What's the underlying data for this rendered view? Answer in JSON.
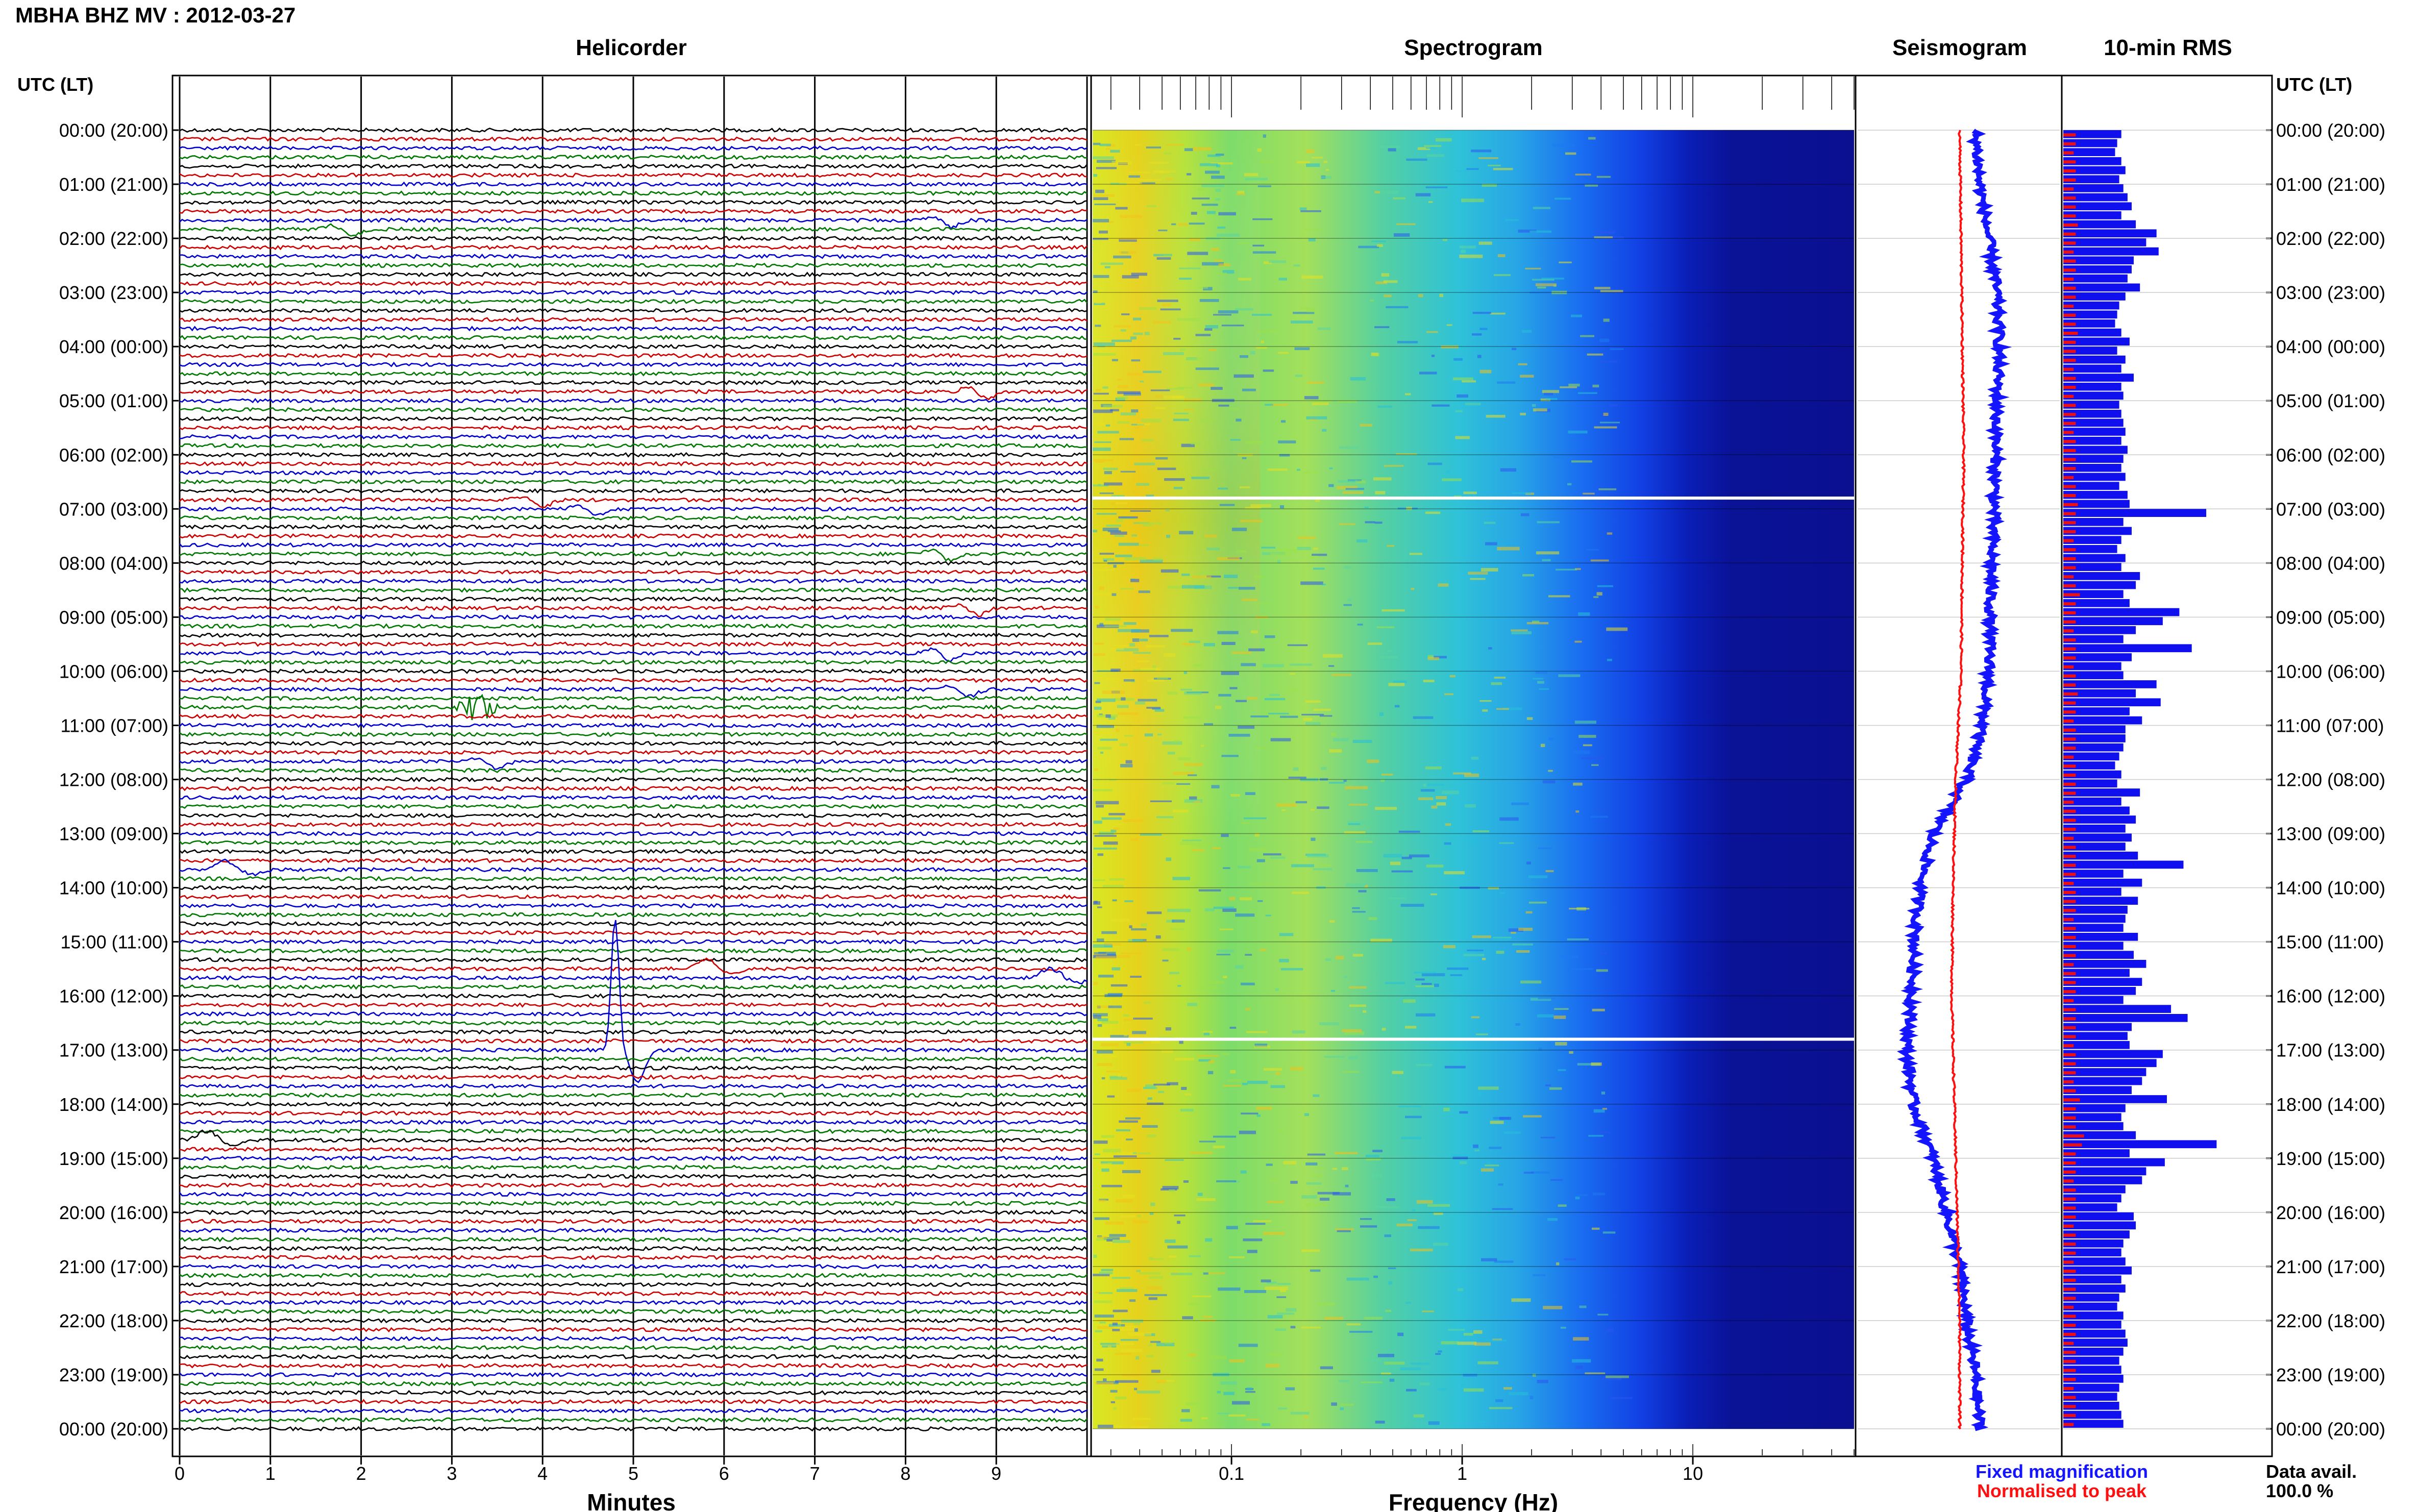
{
  "header": {
    "title": "MBHA BHZ MV : 2012-03-27"
  },
  "panels": {
    "helicorder": "Helicorder",
    "spectrogram": "Spectrogram",
    "seismogram": "Seismogram",
    "rms": "10-min RMS"
  },
  "axes": {
    "utc_label_left": "UTC (LT)",
    "utc_label_right": "UTC (LT)",
    "minutes_label": "Minutes",
    "frequency_label": "Frequency (Hz)",
    "minute_ticks": [
      "0",
      "1",
      "2",
      "3",
      "4",
      "5",
      "6",
      "7",
      "8",
      "9"
    ],
    "freq_ticks": [
      "0.1",
      "1",
      "10"
    ],
    "hour_labels": [
      "00:00 (20:00)",
      "01:00 (21:00)",
      "02:00 (22:00)",
      "03:00 (23:00)",
      "04:00 (00:00)",
      "05:00 (01:00)",
      "06:00 (02:00)",
      "07:00 (03:00)",
      "08:00 (04:00)",
      "09:00 (05:00)",
      "10:00 (06:00)",
      "11:00 (07:00)",
      "12:00 (08:00)",
      "13:00 (09:00)",
      "14:00 (10:00)",
      "15:00 (11:00)",
      "16:00 (12:00)",
      "17:00 (13:00)",
      "18:00 (14:00)",
      "19:00 (15:00)",
      "20:00 (16:00)",
      "21:00 (17:00)",
      "22:00 (18:00)",
      "23:00 (19:00)",
      "00:00 (20:00)"
    ]
  },
  "legend": {
    "fixed": "Fixed magnification",
    "normalised": "Normalised to peak",
    "data_avail_label": "Data avail.",
    "data_avail_value": "100.0 %"
  },
  "colors": {
    "fixed": "#1414ff",
    "normalised": "#ff1010",
    "trace_cycle": [
      "#000000",
      "#cc0000",
      "#0000cc",
      "#007700"
    ],
    "rms_bar": "#1010ee",
    "rms_norm": "#ee1010"
  },
  "chart_data": [
    {
      "type": "line",
      "title": "Helicorder",
      "xlabel": "Minutes",
      "xlim": [
        0,
        10
      ],
      "rows_per_hour": 6,
      "row_minutes": 10,
      "events": [
        {
          "row": 11,
          "minute": 1.8,
          "kind": "dip"
        },
        {
          "row": 10,
          "minute": 8.4,
          "kind": "dip"
        },
        {
          "row": 29,
          "minute": 8.8,
          "kind": "dip"
        },
        {
          "row": 41,
          "minute": 3.9,
          "kind": "dip"
        },
        {
          "row": 42,
          "minute": 4.5,
          "kind": "dip"
        },
        {
          "row": 47,
          "minute": 8.4,
          "kind": "dip"
        },
        {
          "row": 53,
          "minute": 8.7,
          "kind": "dip"
        },
        {
          "row": 58,
          "minute": 8.4,
          "kind": "dip"
        },
        {
          "row": 62,
          "minute": 8.6,
          "kind": "dip"
        },
        {
          "row": 64,
          "minute": 3.3,
          "kind": "burst"
        },
        {
          "row": 70,
          "minute": 3.4,
          "kind": "dip"
        },
        {
          "row": 82,
          "minute": 0.5,
          "kind": "bump"
        },
        {
          "row": 93,
          "minute": 5.8,
          "kind": "bump"
        },
        {
          "row": 94,
          "minute": 9.6,
          "kind": "bump"
        },
        {
          "row": 102,
          "minute": 4.8,
          "kind": "spike"
        },
        {
          "row": 112,
          "minute": 0.3,
          "kind": "bump"
        }
      ]
    },
    {
      "type": "heatmap",
      "title": "Spectrogram",
      "xlabel": "Frequency (Hz)",
      "x_scale": "log",
      "xlim": [
        0.025,
        50
      ],
      "ylim_hours": [
        0,
        24
      ],
      "gaps_hours": [
        6.8,
        16.8
      ]
    },
    {
      "type": "line",
      "title": "Seismogram",
      "series": [
        {
          "name": "Fixed magnification",
          "hours": [
            0,
            1,
            2,
            3,
            4,
            5,
            6,
            7,
            8,
            9,
            10,
            11,
            12,
            13,
            14,
            15,
            16,
            17,
            18,
            19,
            20,
            21,
            22,
            23,
            24
          ],
          "values": [
            0.12,
            0.15,
            0.22,
            0.28,
            0.3,
            0.28,
            0.27,
            0.26,
            0.24,
            0.23,
            0.22,
            0.17,
            0.05,
            -0.2,
            -0.3,
            -0.34,
            -0.36,
            -0.4,
            -0.35,
            -0.2,
            -0.1,
            0.0,
            0.05,
            0.12,
            0.15
          ]
        },
        {
          "name": "Normalised to peak",
          "hours": [
            0,
            2,
            4,
            6,
            8,
            10,
            12,
            14,
            16,
            18,
            20,
            22,
            24
          ],
          "values": [
            0.0,
            0.01,
            0.02,
            0.03,
            0.02,
            0.01,
            -0.03,
            -0.05,
            -0.06,
            -0.04,
            -0.02,
            0.0,
            0.0
          ]
        }
      ]
    },
    {
      "type": "bar",
      "title": "10-min RMS",
      "series": [
        {
          "name": "Fixed magnification",
          "values": [
            0.28,
            0.26,
            0.25,
            0.28,
            0.3,
            0.27,
            0.29,
            0.31,
            0.33,
            0.28,
            0.35,
            0.45,
            0.4,
            0.46,
            0.34,
            0.33,
            0.31,
            0.37,
            0.3,
            0.27,
            0.26,
            0.25,
            0.28,
            0.32,
            0.26,
            0.3,
            0.28,
            0.34,
            0.28,
            0.29,
            0.27,
            0.28,
            0.29,
            0.3,
            0.28,
            0.31,
            0.29,
            0.28,
            0.3,
            0.27,
            0.31,
            0.32,
            0.69,
            0.29,
            0.33,
            0.28,
            0.26,
            0.3,
            0.28,
            0.37,
            0.35,
            0.29,
            0.32,
            0.56,
            0.48,
            0.35,
            0.29,
            0.62,
            0.33,
            0.28,
            0.29,
            0.45,
            0.35,
            0.47,
            0.32,
            0.38,
            0.3,
            0.3,
            0.29,
            0.27,
            0.25,
            0.28,
            0.26,
            0.37,
            0.28,
            0.32,
            0.35,
            0.3,
            0.33,
            0.3,
            0.36,
            0.58,
            0.29,
            0.38,
            0.28,
            0.36,
            0.31,
            0.3,
            0.29,
            0.36,
            0.29,
            0.34,
            0.4,
            0.32,
            0.38,
            0.35,
            0.29,
            0.52,
            0.6,
            0.33,
            0.31,
            0.32,
            0.48,
            0.45,
            0.4,
            0.38,
            0.33,
            0.5,
            0.3,
            0.28,
            0.29,
            0.35,
            0.74,
            0.32,
            0.49,
            0.4,
            0.38,
            0.3,
            0.28,
            0.26,
            0.34,
            0.35,
            0.32,
            0.29,
            0.28,
            0.3,
            0.33,
            0.28,
            0.3,
            0.27,
            0.26,
            0.29,
            0.28,
            0.3,
            0.31,
            0.29,
            0.27,
            0.28,
            0.29,
            0.27,
            0.26,
            0.27,
            0.28,
            0.29
          ]
        },
        {
          "name": "Normalised to peak",
          "values": [
            0.06,
            0.06,
            0.05,
            0.06,
            0.06,
            0.06,
            0.05,
            0.06,
            0.06,
            0.06,
            0.07,
            0.06,
            0.06,
            0.05,
            0.06,
            0.06,
            0.05,
            0.06,
            0.06,
            0.05,
            0.06,
            0.06,
            0.07,
            0.06,
            0.06,
            0.06,
            0.05,
            0.06,
            0.06,
            0.05,
            0.06,
            0.06,
            0.06,
            0.05,
            0.06,
            0.06,
            0.06,
            0.06,
            0.05,
            0.06,
            0.06,
            0.07,
            0.06,
            0.06,
            0.06,
            0.05,
            0.06,
            0.06,
            0.06,
            0.05,
            0.06,
            0.08,
            0.06,
            0.06,
            0.06,
            0.05,
            0.06,
            0.06,
            0.06,
            0.05,
            0.06,
            0.06,
            0.07,
            0.06,
            0.06,
            0.05,
            0.06,
            0.06,
            0.06,
            0.05,
            0.06,
            0.06,
            0.06,
            0.06,
            0.05,
            0.06,
            0.06,
            0.06,
            0.05,
            0.06,
            0.06,
            0.06,
            0.06,
            0.05,
            0.06,
            0.06,
            0.06,
            0.05,
            0.06,
            0.06,
            0.06,
            0.06,
            0.05,
            0.06,
            0.06,
            0.06,
            0.05,
            0.06,
            0.06,
            0.06,
            0.06,
            0.05,
            0.06,
            0.06,
            0.06,
            0.05,
            0.06,
            0.08,
            0.06,
            0.06,
            0.06,
            0.1,
            0.09,
            0.06,
            0.06,
            0.06,
            0.05,
            0.06,
            0.06,
            0.06,
            0.06,
            0.05,
            0.06,
            0.06,
            0.06,
            0.05,
            0.06,
            0.06,
            0.06,
            0.06,
            0.05,
            0.06,
            0.06,
            0.06,
            0.05,
            0.06,
            0.06,
            0.06,
            0.06,
            0.05,
            0.06,
            0.06,
            0.06,
            0.05
          ]
        }
      ]
    }
  ]
}
